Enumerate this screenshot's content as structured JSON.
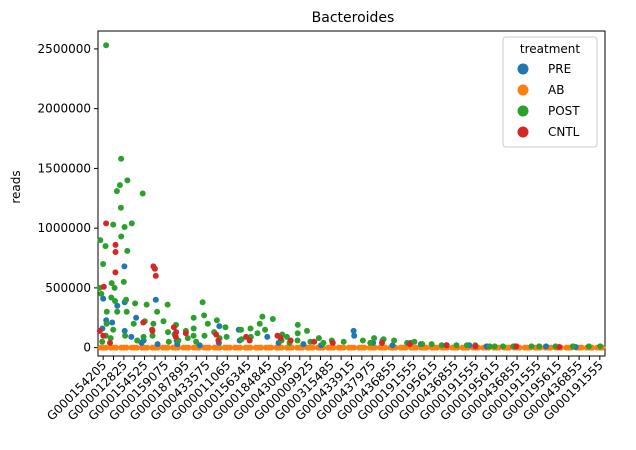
{
  "chart_data": {
    "type": "scatter",
    "title": "Bacteroides",
    "xlabel": "",
    "ylabel": "reads",
    "ylim": [
      -70000,
      2650000
    ],
    "yticks": [
      0,
      500000,
      1000000,
      1500000,
      2000000,
      2500000
    ],
    "ytick_labels": [
      "0",
      "500000",
      "1000000",
      "1500000",
      "2000000",
      "2500000"
    ],
    "xtick_labels": [
      "G000154205",
      "G000012825",
      "G000154525",
      "G000159075",
      "G000187895",
      "G000433575",
      "G000011065",
      "G000156345",
      "G000184845",
      "G000430095",
      "G000009925",
      "G000315485",
      "G000433915",
      "G000437975",
      "G000436855",
      "G000191555",
      "G000195615",
      "G000436855",
      "G000436855",
      "G000191555",
      "G000195615",
      "G000436855",
      "G000191555",
      "G000195615",
      "G000436855",
      "G000191555",
      "G000195615",
      "G000436855",
      "G000191555",
      "G000195615",
      "G000436855",
      "G000191555"
    ],
    "xtick_labels_visible": [
      "G000154205",
      "G000012825",
      "G000154525",
      "G000159075",
      "G000187895",
      "G000433575",
      "G000011065",
      "G000156345",
      "G000184845",
      "G000430095",
      "G000009925",
      "G000315485",
      "G000433915",
      "G000437975",
      "G000436855",
      "G000191555",
      "G000195615",
      "G000436855",
      "G000191555",
      "G000195615",
      "G000436855",
      "G000191555",
      "G000195615",
      "G000436855",
      "G000191555"
    ],
    "legend": {
      "title": "treatment",
      "placement": "top-right",
      "entries": [
        {
          "label": "PRE",
          "color": "#1f77b4"
        },
        {
          "label": "AB",
          "color": "#ff7f0e"
        },
        {
          "label": "POST",
          "color": "#2ca02c"
        },
        {
          "label": "CNTL",
          "color": "#d62728"
        }
      ]
    },
    "n_categories": 49,
    "series": [
      {
        "name": "PRE",
        "color": "#1f77b4",
        "points": [
          [
            0,
            410000
          ],
          [
            0,
            230000
          ],
          [
            0,
            160000
          ],
          [
            1,
            350000
          ],
          [
            1,
            210000
          ],
          [
            2,
            380000
          ],
          [
            2,
            680000
          ],
          [
            2,
            140000
          ],
          [
            3,
            250000
          ],
          [
            3,
            90000
          ],
          [
            4,
            60000
          ],
          [
            4,
            40000
          ],
          [
            5,
            400000
          ],
          [
            5,
            30000
          ],
          [
            7,
            60000
          ],
          [
            7,
            30000
          ],
          [
            9,
            20000
          ],
          [
            11,
            180000
          ],
          [
            11,
            40000
          ],
          [
            13,
            150000
          ],
          [
            13,
            60000
          ],
          [
            16,
            90000
          ],
          [
            17,
            40000
          ],
          [
            19,
            30000
          ],
          [
            21,
            20000
          ],
          [
            24,
            140000
          ],
          [
            24,
            100000
          ],
          [
            26,
            40000
          ],
          [
            27,
            60000
          ],
          [
            28,
            20000
          ],
          [
            30,
            40000
          ],
          [
            31,
            30000
          ],
          [
            33,
            20000
          ],
          [
            35,
            20000
          ],
          [
            37,
            10000
          ],
          [
            40,
            10000
          ],
          [
            43,
            10000
          ],
          [
            46,
            5000
          ]
        ]
      },
      {
        "name": "AB",
        "color": "#ff7f0e",
        "points": [
          [
            0,
            0
          ],
          [
            1,
            0
          ],
          [
            2,
            0
          ],
          [
            3,
            0
          ],
          [
            4,
            0
          ],
          [
            5,
            0
          ],
          [
            6,
            0
          ],
          [
            7,
            0
          ],
          [
            8,
            0
          ],
          [
            9,
            0
          ],
          [
            10,
            0
          ],
          [
            11,
            0
          ],
          [
            12,
            0
          ],
          [
            13,
            0
          ],
          [
            14,
            0
          ],
          [
            15,
            0
          ],
          [
            16,
            0
          ],
          [
            17,
            0
          ],
          [
            18,
            0
          ],
          [
            19,
            0
          ],
          [
            20,
            0
          ],
          [
            21,
            0
          ],
          [
            22,
            0
          ],
          [
            23,
            0
          ],
          [
            24,
            0
          ],
          [
            25,
            0
          ],
          [
            26,
            0
          ],
          [
            27,
            0
          ],
          [
            28,
            0
          ],
          [
            29,
            0
          ],
          [
            30,
            0
          ],
          [
            31,
            0
          ],
          [
            32,
            0
          ],
          [
            33,
            0
          ],
          [
            34,
            0
          ],
          [
            35,
            0
          ],
          [
            36,
            0
          ],
          [
            37,
            0
          ],
          [
            38,
            0
          ],
          [
            39,
            0
          ],
          [
            40,
            0
          ],
          [
            41,
            0
          ],
          [
            42,
            0
          ],
          [
            43,
            0
          ],
          [
            44,
            0
          ],
          [
            45,
            0
          ],
          [
            46,
            0
          ],
          [
            47,
            0
          ],
          [
            48,
            0
          ]
        ]
      },
      {
        "name": "POST",
        "color": "#2ca02c",
        "points": [
          [
            0,
            2530000
          ],
          [
            0,
            900000
          ],
          [
            0,
            850000
          ],
          [
            0,
            700000
          ],
          [
            0,
            500000
          ],
          [
            0,
            450000
          ],
          [
            0,
            300000
          ],
          [
            0,
            200000
          ],
          [
            0,
            100000
          ],
          [
            0,
            50000
          ],
          [
            1,
            1310000
          ],
          [
            1,
            1030000
          ],
          [
            1,
            540000
          ],
          [
            1,
            500000
          ],
          [
            1,
            420000
          ],
          [
            1,
            390000
          ],
          [
            1,
            300000
          ],
          [
            1,
            150000
          ],
          [
            1,
            80000
          ],
          [
            2,
            1580000
          ],
          [
            2,
            1400000
          ],
          [
            2,
            1360000
          ],
          [
            2,
            1170000
          ],
          [
            2,
            1010000
          ],
          [
            2,
            930000
          ],
          [
            2,
            810000
          ],
          [
            2,
            550000
          ],
          [
            2,
            400000
          ],
          [
            2,
            300000
          ],
          [
            2,
            100000
          ],
          [
            3,
            1040000
          ],
          [
            3,
            370000
          ],
          [
            3,
            200000
          ],
          [
            3,
            60000
          ],
          [
            4,
            1290000
          ],
          [
            4,
            360000
          ],
          [
            4,
            220000
          ],
          [
            4,
            90000
          ],
          [
            5,
            300000
          ],
          [
            5,
            200000
          ],
          [
            5,
            100000
          ],
          [
            6,
            360000
          ],
          [
            6,
            220000
          ],
          [
            6,
            130000
          ],
          [
            6,
            50000
          ],
          [
            7,
            190000
          ],
          [
            7,
            110000
          ],
          [
            7,
            60000
          ],
          [
            8,
            140000
          ],
          [
            8,
            80000
          ],
          [
            9,
            250000
          ],
          [
            9,
            160000
          ],
          [
            9,
            100000
          ],
          [
            9,
            50000
          ],
          [
            10,
            380000
          ],
          [
            10,
            270000
          ],
          [
            10,
            200000
          ],
          [
            10,
            100000
          ],
          [
            11,
            230000
          ],
          [
            11,
            130000
          ],
          [
            11,
            80000
          ],
          [
            12,
            170000
          ],
          [
            12,
            90000
          ],
          [
            13,
            150000
          ],
          [
            13,
            70000
          ],
          [
            14,
            160000
          ],
          [
            14,
            90000
          ],
          [
            15,
            260000
          ],
          [
            15,
            200000
          ],
          [
            15,
            120000
          ],
          [
            16,
            240000
          ],
          [
            16,
            150000
          ],
          [
            17,
            110000
          ],
          [
            17,
            60000
          ],
          [
            18,
            90000
          ],
          [
            18,
            40000
          ],
          [
            19,
            190000
          ],
          [
            19,
            120000
          ],
          [
            19,
            60000
          ],
          [
            20,
            140000
          ],
          [
            20,
            50000
          ],
          [
            21,
            80000
          ],
          [
            21,
            40000
          ],
          [
            22,
            60000
          ],
          [
            23,
            50000
          ],
          [
            25,
            60000
          ],
          [
            26,
            80000
          ],
          [
            26,
            40000
          ],
          [
            27,
            70000
          ],
          [
            28,
            60000
          ],
          [
            29,
            40000
          ],
          [
            30,
            50000
          ],
          [
            31,
            30000
          ],
          [
            32,
            30000
          ],
          [
            33,
            20000
          ],
          [
            34,
            20000
          ],
          [
            35,
            20000
          ],
          [
            36,
            20000
          ],
          [
            37,
            10000
          ],
          [
            38,
            10000
          ],
          [
            39,
            10000
          ],
          [
            40,
            10000
          ],
          [
            41,
            10000
          ],
          [
            42,
            10000
          ],
          [
            44,
            10000
          ],
          [
            45,
            10000
          ],
          [
            47,
            10000
          ],
          [
            48,
            10000
          ]
        ]
      },
      {
        "name": "CNTL",
        "color": "#d62728",
        "points": [
          [
            0,
            1040000
          ],
          [
            0,
            510000
          ],
          [
            0,
            140000
          ],
          [
            0,
            100000
          ],
          [
            1,
            860000
          ],
          [
            1,
            800000
          ],
          [
            1,
            630000
          ],
          [
            1,
            40000
          ],
          [
            4,
            210000
          ],
          [
            5,
            150000
          ],
          [
            5,
            140000
          ],
          [
            5,
            680000
          ],
          [
            5,
            660000
          ],
          [
            5,
            600000
          ],
          [
            7,
            170000
          ],
          [
            7,
            130000
          ],
          [
            7,
            90000
          ],
          [
            8,
            120000
          ],
          [
            11,
            110000
          ],
          [
            11,
            60000
          ],
          [
            14,
            90000
          ],
          [
            14,
            60000
          ],
          [
            17,
            100000
          ],
          [
            17,
            80000
          ],
          [
            18,
            60000
          ],
          [
            20,
            50000
          ],
          [
            22,
            40000
          ],
          [
            27,
            40000
          ],
          [
            30,
            30000
          ],
          [
            33,
            20000
          ],
          [
            36,
            10000
          ],
          [
            40,
            10000
          ],
          [
            44,
            5000
          ]
        ]
      }
    ]
  }
}
